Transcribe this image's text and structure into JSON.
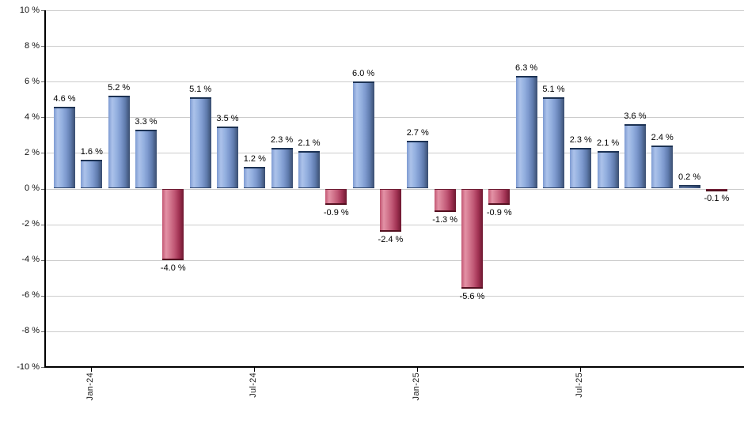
{
  "chart_data": {
    "type": "bar",
    "title": "",
    "unit": "%",
    "values": [
      4.6,
      1.6,
      5.2,
      3.3,
      -4.0,
      5.1,
      3.5,
      1.2,
      2.3,
      2.1,
      -0.9,
      6.0,
      -2.4,
      2.7,
      -1.3,
      -5.6,
      -0.9,
      6.3,
      5.1,
      2.3,
      2.1,
      3.6,
      2.4,
      0.2,
      -0.1
    ],
    "bar_labels": [
      "4.6 %",
      "1.6 %",
      "5.2 %",
      "3.3 %",
      "-4.0 %",
      "5.1 %",
      "3.5 %",
      "1.2 %",
      "2.3 %",
      "2.1 %",
      "-0.9 %",
      "6.0 %",
      "-2.4 %",
      "2.7 %",
      "-1.3 %",
      "-5.6 %",
      "-0.9 %",
      "6.3 %",
      "5.1 %",
      "2.3 %",
      "2.1 %",
      "3.6 %",
      "2.4 %",
      "0.2 %",
      "-0.1 %"
    ],
    "x_tick_labels": [
      "Jan-24",
      "Jul-24",
      "Jan-25",
      "Jul-25"
    ],
    "x_tick_indices": [
      1,
      7,
      13,
      19
    ],
    "y_tick_labels": [
      "10 %",
      "8 %",
      "6 %",
      "4 %",
      "2 %",
      "0 %",
      "-2 %",
      "-4 %",
      "-6 %",
      "-8 %",
      "-10 %"
    ],
    "ylim": [
      -10,
      10
    ],
    "grid": true,
    "legend": "none",
    "colors": {
      "positive_bar_light": "#acc2ea",
      "positive_bar_dark": "#3a4e70",
      "positive_bar_cap": "#1c3253",
      "negative_bar_light": "#e392a6",
      "negative_bar_dark": "#6e1730",
      "negative_bar_cap": "#541020",
      "gridline": "#cccccc",
      "axis": "#000000",
      "label_text": "#000000",
      "background": "#ffffff"
    }
  }
}
